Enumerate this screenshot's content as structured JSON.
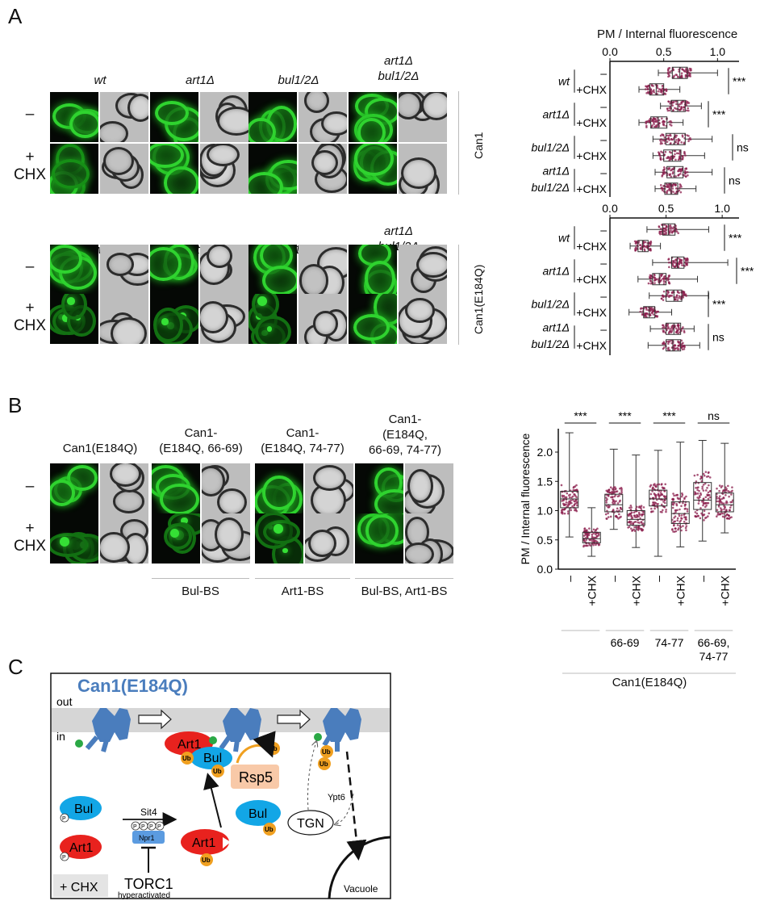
{
  "panelA": {
    "label": "A",
    "strains": [
      "wt",
      "art1Δ",
      "bul1/2Δ",
      "art1Δ bul1/2Δ"
    ],
    "strain_lines": [
      [
        "wt"
      ],
      [
        "art1Δ"
      ],
      [
        "bul1/2Δ"
      ],
      [
        "art1Δ",
        "bul1/2Δ"
      ]
    ],
    "row_minus": "–",
    "row_plus": "+",
    "row_plus2": "CHX",
    "side_top": "Can1",
    "side_bottom": "Can1(E184Q)",
    "chart_top": {
      "type": "box",
      "title": "PM / Internal fluorescence",
      "xlim": [
        0.0,
        1.2
      ],
      "ticks": [
        "0.0",
        "0.5",
        "1.0"
      ],
      "tick_values": [
        0.0,
        0.5,
        1.0
      ],
      "condition_minus": "–",
      "condition_plus": "+CHX",
      "strains": [
        "wt",
        "art1Δ",
        "bul1/2Δ",
        "art1Δ bul1/2Δ"
      ],
      "boxes": [
        {
          "strain": "wt",
          "condition": "–",
          "min": 0.45,
          "q1": 0.58,
          "median": 0.65,
          "q3": 0.72,
          "max": 1.0
        },
        {
          "strain": "wt",
          "condition": "+CHX",
          "min": 0.27,
          "q1": 0.37,
          "median": 0.43,
          "q3": 0.5,
          "max": 0.65
        },
        {
          "strain": "art1Δ",
          "condition": "–",
          "min": 0.47,
          "q1": 0.57,
          "median": 0.63,
          "q3": 0.7,
          "max": 0.85
        },
        {
          "strain": "art1Δ",
          "condition": "+CHX",
          "min": 0.27,
          "q1": 0.38,
          "median": 0.45,
          "q3": 0.53,
          "max": 0.68
        },
        {
          "strain": "bul1/2Δ",
          "condition": "–",
          "min": 0.4,
          "q1": 0.52,
          "median": 0.6,
          "q3": 0.7,
          "max": 0.95
        },
        {
          "strain": "bul1/2Δ",
          "condition": "+CHX",
          "min": 0.4,
          "q1": 0.5,
          "median": 0.58,
          "q3": 0.66,
          "max": 0.88
        },
        {
          "strain": "art1Δ bul1/2Δ",
          "condition": "–",
          "min": 0.42,
          "q1": 0.53,
          "median": 0.6,
          "q3": 0.68,
          "max": 0.95
        },
        {
          "strain": "art1Δ bul1/2Δ",
          "condition": "+CHX",
          "min": 0.42,
          "q1": 0.51,
          "median": 0.57,
          "q3": 0.63,
          "max": 0.8
        }
      ],
      "significance": [
        "***",
        "***",
        "ns",
        "ns"
      ]
    },
    "chart_bottom": {
      "type": "box",
      "xlim": [
        0.0,
        1.15
      ],
      "ticks": [
        "0.0",
        "0.5",
        "1.0"
      ],
      "tick_values": [
        0.0,
        0.5,
        1.0
      ],
      "condition_minus": "–",
      "condition_plus": "+CHX",
      "strains": [
        "wt",
        "art1Δ",
        "bul1/2Δ",
        "art1Δ bul1/2Δ"
      ],
      "boxes": [
        {
          "strain": "wt",
          "condition": "–",
          "min": 0.33,
          "q1": 0.47,
          "median": 0.52,
          "q3": 0.58,
          "max": 0.88
        },
        {
          "strain": "wt",
          "condition": "+CHX",
          "min": 0.18,
          "q1": 0.25,
          "median": 0.29,
          "q3": 0.34,
          "max": 0.45
        },
        {
          "strain": "art1Δ",
          "condition": "–",
          "min": 0.38,
          "q1": 0.55,
          "median": 0.6,
          "q3": 0.66,
          "max": 1.05
        },
        {
          "strain": "art1Δ",
          "condition": "+CHX",
          "min": 0.25,
          "q1": 0.38,
          "median": 0.44,
          "q3": 0.5,
          "max": 0.78
        },
        {
          "strain": "bul1/2Δ",
          "condition": "–",
          "min": 0.35,
          "q1": 0.5,
          "median": 0.57,
          "q3": 0.64,
          "max": 0.88
        },
        {
          "strain": "bul1/2Δ",
          "condition": "+CHX",
          "min": 0.17,
          "q1": 0.3,
          "median": 0.35,
          "q3": 0.4,
          "max": 0.55
        },
        {
          "strain": "art1Δ bul1/2Δ",
          "condition": "–",
          "min": 0.36,
          "q1": 0.5,
          "median": 0.57,
          "q3": 0.63,
          "max": 0.75
        },
        {
          "strain": "art1Δ bul1/2Δ",
          "condition": "+CHX",
          "min": 0.34,
          "q1": 0.5,
          "median": 0.56,
          "q3": 0.63,
          "max": 0.8
        }
      ],
      "significance": [
        "***",
        "***",
        "***",
        "ns"
      ]
    }
  },
  "panelB": {
    "label": "B",
    "headers": [
      [
        "Can1(E184Q)"
      ],
      [
        "Can1-",
        "(E184Q, 66-69)"
      ],
      [
        "Can1-",
        "(E184Q, 74-77)"
      ],
      [
        "Can1-",
        "(E184Q,",
        "66-69, 74-77)"
      ]
    ],
    "row_minus": "–",
    "row_plus": "+",
    "row_plus2": "CHX",
    "footers": [
      "Bul-BS",
      "Art1-BS",
      "Bul-BS, Art1-BS"
    ],
    "chart": {
      "type": "box",
      "ylabel": "PM / Internal fluorescence",
      "ylim": [
        0.0,
        2.4
      ],
      "ticks": [
        "0.0",
        "0.5",
        "1.0",
        "1.5",
        "2.0"
      ],
      "tick_values": [
        0.0,
        0.5,
        1.0,
        1.5,
        2.0
      ],
      "condition_minus": "–",
      "condition_plus": "+CHX",
      "groups": [
        "",
        "66-69",
        "74-77",
        "66-69,\n74-77"
      ],
      "group_lines": [
        [
          ""
        ],
        [
          "66-69"
        ],
        [
          "74-77"
        ],
        [
          "66-69,",
          "74-77"
        ]
      ],
      "group_bottom": "Can1(E184Q)",
      "boxes": [
        {
          "group": 0,
          "condition": "–",
          "min": 0.55,
          "q1": 1.05,
          "median": 1.2,
          "q3": 1.33,
          "max": 2.33
        },
        {
          "group": 0,
          "condition": "+CHX",
          "min": 0.22,
          "q1": 0.45,
          "median": 0.52,
          "q3": 0.63,
          "max": 1.05
        },
        {
          "group": 1,
          "condition": "–",
          "min": 0.68,
          "q1": 0.98,
          "median": 1.1,
          "q3": 1.28,
          "max": 2.05
        },
        {
          "group": 1,
          "condition": "+CHX",
          "min": 0.37,
          "q1": 0.75,
          "median": 0.85,
          "q3": 1.0,
          "max": 1.95
        },
        {
          "group": 2,
          "condition": "–",
          "min": 0.22,
          "q1": 1.08,
          "median": 1.2,
          "q3": 1.35,
          "max": 2.03
        },
        {
          "group": 2,
          "condition": "+CHX",
          "min": 0.38,
          "q1": 0.78,
          "median": 0.95,
          "q3": 1.15,
          "max": 2.17
        },
        {
          "group": 3,
          "condition": "–",
          "min": 0.48,
          "q1": 1.02,
          "median": 1.18,
          "q3": 1.48,
          "max": 2.2
        },
        {
          "group": 3,
          "condition": "+CHX",
          "min": 0.62,
          "q1": 0.98,
          "median": 1.1,
          "q3": 1.3,
          "max": 2.15
        }
      ],
      "significance": [
        "***",
        "***",
        "***",
        "ns"
      ]
    }
  },
  "panelC": {
    "label": "C",
    "title": "Can1(E184Q)",
    "out": "out",
    "in": "in",
    "art1": "Art1",
    "bul": "Bul",
    "ub": "Ub",
    "rsp5": "Rsp5",
    "sit4": "Sit4",
    "npr1": "Npr1",
    "p": "P",
    "torc1": "TORC1",
    "hyper": "hyperactivated",
    "tgn": "TGN",
    "ypt6": "Ypt6",
    "vacuole": "Vacuole",
    "chx": "+ CHX",
    "colors": {
      "can1": "#4a7dbd",
      "art1": "#e8221e",
      "bul": "#12a6e6",
      "ub": "#f0a020",
      "rsp5": "#f8c9a8",
      "npr1": "#5b9be0",
      "membrane": "#d6d6d6",
      "box": "#8b1e4c"
    }
  }
}
